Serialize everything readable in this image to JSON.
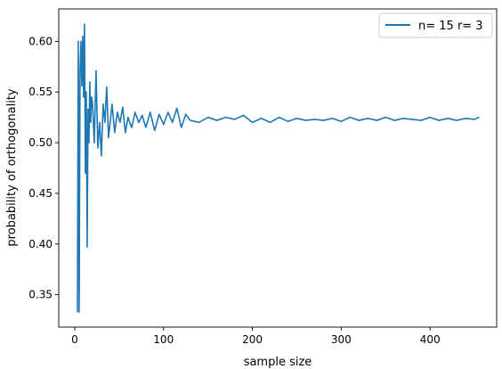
{
  "chart_data": {
    "type": "line",
    "xlabel": "sample size",
    "ylabel": "probability of orthogonality",
    "xlim": [
      -18,
      475
    ],
    "ylim": [
      0.318,
      0.632
    ],
    "xticks": [
      0,
      100,
      200,
      300,
      400
    ],
    "yticks": [
      0.35,
      0.4,
      0.45,
      0.5,
      0.55,
      0.6
    ],
    "xtick_labels": [
      "0",
      "100",
      "200",
      "300",
      "400"
    ],
    "ytick_labels": [
      "0.35",
      "0.40",
      "0.45",
      "0.50",
      "0.55",
      "0.60"
    ],
    "grid": false,
    "legend_position": "top-right",
    "series": [
      {
        "name": "n= 15 r= 3",
        "color": "#1f77b4",
        "x": [
          3,
          4,
          5,
          6,
          7,
          8,
          9,
          10,
          11,
          12,
          13,
          14,
          15,
          16,
          17,
          18,
          19,
          20,
          22,
          24,
          26,
          28,
          30,
          32,
          34,
          36,
          38,
          40,
          42,
          45,
          48,
          51,
          54,
          57,
          60,
          64,
          68,
          72,
          76,
          80,
          85,
          90,
          95,
          100,
          105,
          110,
          115,
          120,
          125,
          130,
          140,
          150,
          160,
          170,
          180,
          190,
          200,
          210,
          220,
          230,
          240,
          250,
          260,
          270,
          280,
          290,
          300,
          310,
          320,
          330,
          340,
          350,
          360,
          370,
          380,
          390,
          400,
          410,
          420,
          430,
          440,
          450,
          455
        ],
        "y": [
          0.333,
          0.6,
          0.333,
          0.571,
          0.6,
          0.556,
          0.605,
          0.545,
          0.617,
          0.47,
          0.55,
          0.397,
          0.533,
          0.5,
          0.56,
          0.52,
          0.545,
          0.54,
          0.5,
          0.571,
          0.495,
          0.52,
          0.487,
          0.538,
          0.52,
          0.555,
          0.505,
          0.521,
          0.538,
          0.51,
          0.53,
          0.52,
          0.535,
          0.51,
          0.525,
          0.515,
          0.53,
          0.52,
          0.527,
          0.515,
          0.53,
          0.512,
          0.528,
          0.518,
          0.53,
          0.52,
          0.534,
          0.515,
          0.528,
          0.522,
          0.52,
          0.525,
          0.522,
          0.525,
          0.523,
          0.527,
          0.52,
          0.524,
          0.52,
          0.525,
          0.521,
          0.524,
          0.522,
          0.523,
          0.522,
          0.524,
          0.521,
          0.525,
          0.522,
          0.524,
          0.522,
          0.525,
          0.522,
          0.524,
          0.523,
          0.522,
          0.525,
          0.522,
          0.524,
          0.522,
          0.524,
          0.523,
          0.525
        ]
      }
    ]
  }
}
